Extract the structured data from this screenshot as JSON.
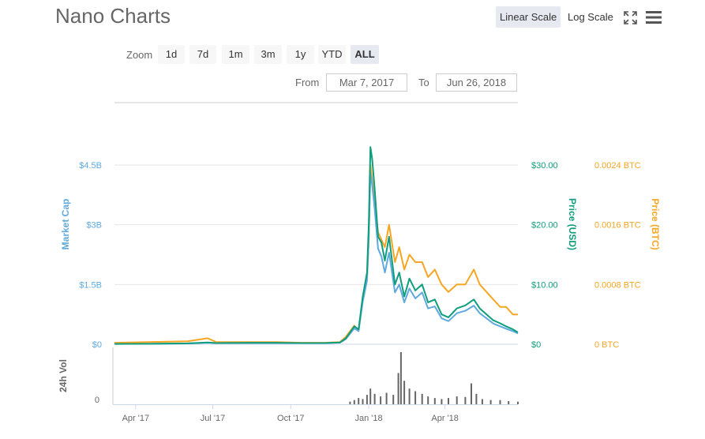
{
  "header": {
    "title": "Nano Charts",
    "linear_scale": "Linear Scale",
    "log_scale": "Log Scale",
    "fullscreen_icon": "fullscreen-icon",
    "menu_icon": "hamburger-menu-icon"
  },
  "zoom": {
    "label": "Zoom",
    "buttons": [
      "1d",
      "7d",
      "1m",
      "3m",
      "1y",
      "YTD",
      "ALL"
    ],
    "active": "ALL"
  },
  "range": {
    "from_label": "From",
    "from_value": "Mar 7, 2017",
    "to_label": "To",
    "to_value": "Jun 26, 2018"
  },
  "colors": {
    "market_cap": "#5fa9dd",
    "price_usd": "#0e9d7d",
    "price_btc": "#f6a623",
    "volume": "#666666"
  },
  "chart_data": {
    "type": "line",
    "x_range": [
      "2017-03-07",
      "2018-06-26"
    ],
    "x_ticks": [
      "Apr '17",
      "Jul '17",
      "Oct '17",
      "Jan '18",
      "Apr '18"
    ],
    "axes": {
      "market_cap": {
        "label": "Market Cap",
        "ticks": [
          "$0",
          "$1.5B",
          "$3B",
          "$4.5B"
        ],
        "range": [
          0,
          4500000000.0
        ]
      },
      "price_usd": {
        "label": "Price (USD)",
        "ticks": [
          "$0",
          "$10.00",
          "$20.00",
          "$30.00"
        ],
        "range": [
          0,
          30
        ]
      },
      "price_btc": {
        "label": "Price (BTC)",
        "ticks": [
          "0 BTC",
          "0.0008 BTC",
          "0.0016 BTC",
          "0.0024 BTC"
        ],
        "range": [
          0,
          0.0024
        ]
      },
      "volume": {
        "label": "24h Vol",
        "ticks": [
          "0"
        ]
      }
    },
    "series": [
      {
        "name": "Price (USD)",
        "axis": "price_usd",
        "x": [
          "2017-03-07",
          "2017-04-15",
          "2017-06-01",
          "2017-06-25",
          "2017-07-05",
          "2017-08-15",
          "2017-09-15",
          "2017-10-15",
          "2017-11-10",
          "2017-11-28",
          "2017-12-05",
          "2017-12-15",
          "2017-12-20",
          "2017-12-25",
          "2017-12-30",
          "2018-01-01",
          "2018-01-03",
          "2018-01-05",
          "2018-01-08",
          "2018-01-12",
          "2018-01-16",
          "2018-01-20",
          "2018-01-25",
          "2018-02-01",
          "2018-02-06",
          "2018-02-12",
          "2018-02-18",
          "2018-02-25",
          "2018-03-05",
          "2018-03-12",
          "2018-03-20",
          "2018-03-28",
          "2018-04-05",
          "2018-04-15",
          "2018-04-25",
          "2018-05-05",
          "2018-05-12",
          "2018-05-20",
          "2018-05-28",
          "2018-06-05",
          "2018-06-12",
          "2018-06-20",
          "2018-06-26"
        ],
        "values": [
          0.05,
          0.08,
          0.15,
          0.3,
          0.2,
          0.25,
          0.25,
          0.2,
          0.2,
          0.3,
          1.0,
          3.0,
          2.5,
          8.0,
          12.0,
          20.0,
          33.0,
          31.0,
          26.0,
          18.0,
          17.0,
          14.0,
          18.0,
          10.0,
          12.0,
          8.0,
          11.0,
          9.0,
          10.0,
          7.0,
          7.5,
          5.0,
          4.5,
          6.0,
          6.5,
          7.5,
          6.0,
          5.0,
          4.0,
          3.5,
          3.0,
          2.5,
          2.0
        ]
      },
      {
        "name": "Market Cap",
        "axis": "market_cap",
        "x": [
          "2017-03-07",
          "2017-04-15",
          "2017-06-01",
          "2017-06-25",
          "2017-07-05",
          "2017-08-15",
          "2017-09-15",
          "2017-10-15",
          "2017-11-10",
          "2017-11-28",
          "2017-12-05",
          "2017-12-15",
          "2017-12-20",
          "2017-12-25",
          "2017-12-30",
          "2018-01-01",
          "2018-01-03",
          "2018-01-05",
          "2018-01-08",
          "2018-01-12",
          "2018-01-16",
          "2018-01-20",
          "2018-01-25",
          "2018-02-01",
          "2018-02-06",
          "2018-02-12",
          "2018-02-18",
          "2018-02-25",
          "2018-03-05",
          "2018-03-12",
          "2018-03-20",
          "2018-03-28",
          "2018-04-05",
          "2018-04-15",
          "2018-04-25",
          "2018-05-05",
          "2018-05-12",
          "2018-05-20",
          "2018-05-28",
          "2018-06-05",
          "2018-06-12",
          "2018-06-20",
          "2018-06-26"
        ],
        "values": [
          10000000.0,
          10000000.0,
          20000000.0,
          40000000.0,
          30000000.0,
          30000000.0,
          30000000.0,
          30000000.0,
          30000000.0,
          40000000.0,
          130000000.0,
          400000000.0,
          330000000.0,
          1070000000.0,
          1600000000.0,
          2670000000.0,
          4300000000.0,
          4000000000.0,
          3400000000.0,
          2400000000.0,
          2200000000.0,
          1800000000.0,
          2300000000.0,
          1300000000.0,
          1500000000.0,
          1050000000.0,
          1400000000.0,
          1150000000.0,
          1300000000.0,
          900000000.0,
          950000000.0,
          650000000.0,
          580000000.0,
          780000000.0,
          840000000.0,
          970000000.0,
          780000000.0,
          650000000.0,
          520000000.0,
          450000000.0,
          390000000.0,
          330000000.0,
          270000000.0
        ]
      },
      {
        "name": "Price (BTC)",
        "axis": "price_btc",
        "x": [
          "2017-03-07",
          "2017-04-15",
          "2017-06-01",
          "2017-06-25",
          "2017-07-05",
          "2017-08-15",
          "2017-09-15",
          "2017-10-15",
          "2017-11-10",
          "2017-11-28",
          "2017-12-05",
          "2017-12-15",
          "2017-12-20",
          "2017-12-25",
          "2017-12-30",
          "2018-01-01",
          "2018-01-03",
          "2018-01-05",
          "2018-01-08",
          "2018-01-12",
          "2018-01-16",
          "2018-01-20",
          "2018-01-25",
          "2018-02-01",
          "2018-02-06",
          "2018-02-12",
          "2018-02-18",
          "2018-02-25",
          "2018-03-05",
          "2018-03-12",
          "2018-03-20",
          "2018-03-28",
          "2018-04-05",
          "2018-04-15",
          "2018-04-25",
          "2018-05-05",
          "2018-05-12",
          "2018-05-20",
          "2018-05-28",
          "2018-06-05",
          "2018-06-12",
          "2018-06-20",
          "2018-06-26"
        ],
        "values": [
          2e-05,
          3e-05,
          4e-05,
          8e-05,
          3e-05,
          3e-05,
          3e-05,
          2e-05,
          2e-05,
          3e-05,
          0.0001,
          0.00025,
          0.00018,
          0.0006,
          0.0009,
          0.0014,
          0.0024,
          0.0022,
          0.0019,
          0.0015,
          0.0014,
          0.0013,
          0.0016,
          0.0011,
          0.0013,
          0.001,
          0.0012,
          0.0011,
          0.0011,
          0.0009,
          0.001,
          0.0008,
          0.0007,
          0.0008,
          0.0008,
          0.001,
          0.0008,
          0.0007,
          0.0006,
          0.0005,
          0.0005,
          0.0004,
          0.0004
        ]
      },
      {
        "name": "24h Vol",
        "axis": "volume",
        "type": "column",
        "x": [
          "2017-12-10",
          "2017-12-15",
          "2017-12-20",
          "2017-12-25",
          "2017-12-30",
          "2018-01-03",
          "2018-01-08",
          "2018-01-15",
          "2018-01-22",
          "2018-01-30",
          "2018-02-05",
          "2018-02-08",
          "2018-02-12",
          "2018-02-18",
          "2018-02-25",
          "2018-03-05",
          "2018-03-12",
          "2018-03-20",
          "2018-03-28",
          "2018-04-05",
          "2018-04-15",
          "2018-04-25",
          "2018-05-02",
          "2018-05-08",
          "2018-05-15",
          "2018-05-25",
          "2018-06-05",
          "2018-06-15",
          "2018-06-26"
        ],
        "values": [
          5,
          8,
          12,
          10,
          18,
          30,
          20,
          15,
          22,
          18,
          60,
          100,
          45,
          30,
          25,
          20,
          15,
          12,
          10,
          12,
          15,
          14,
          40,
          20,
          10,
          8,
          8,
          6,
          5
        ]
      }
    ]
  }
}
